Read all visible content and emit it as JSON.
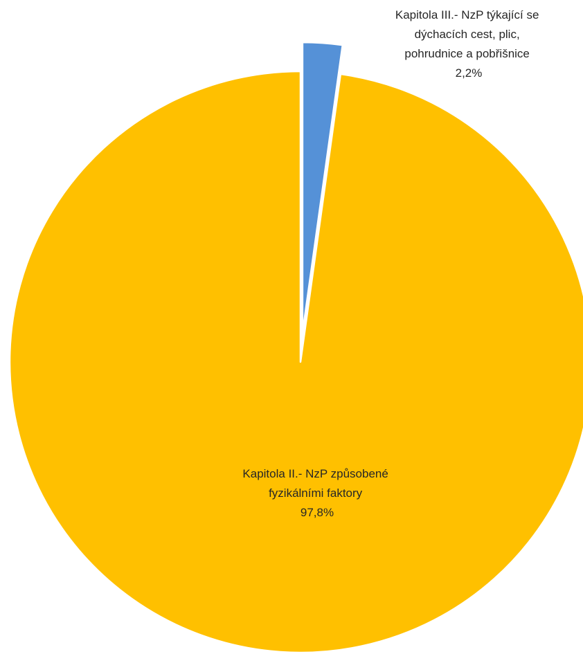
{
  "chart_data": {
    "type": "pie",
    "title": "",
    "slices": [
      {
        "name": "Kapitola III.- NzP týkající se dýchacích cest, plic, pohrudnice a pobřišnice",
        "label_lines": [
          "Kapitola III.- NzP týkající se",
          "dýchacích cest, plic,",
          "pohrudnice a pobřišnice"
        ],
        "value": 2.2,
        "value_label": "2,2%",
        "color": "#5591D7",
        "exploded": true
      },
      {
        "name": "Kapitola II.- NzP způsobené fyzikálními faktory",
        "label_lines": [
          "Kapitola II.- NzP způsobené",
          "fyzikálními faktory"
        ],
        "value": 97.8,
        "value_label": "97,8%",
        "color": "#FFC000",
        "exploded": false
      }
    ],
    "start_angle": "12 o'clock",
    "direction": "clockwise",
    "legend": "none",
    "slice_border_color": "#FFFFFF"
  }
}
